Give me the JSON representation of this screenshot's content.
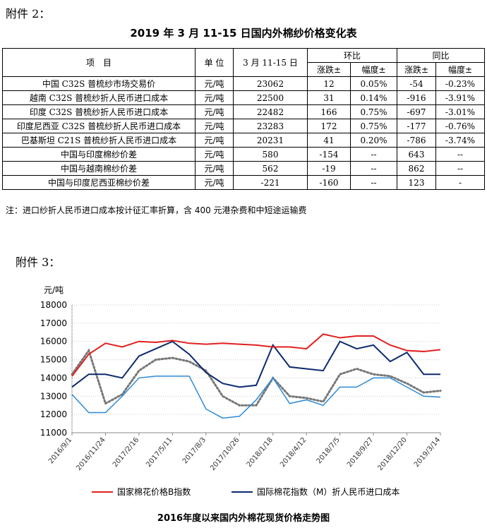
{
  "attachment2": "附件 2：",
  "table_title": "2019 年 3 月 11-15 日国内外棉纱价格变化表",
  "table": {
    "headers": {
      "item": "项　目",
      "unit": "单 位",
      "period": "3 月 11-15 日",
      "mom": "环比",
      "yoy": "同比",
      "change": "涨跌±",
      "pct": "幅度±"
    },
    "rows": [
      [
        "中国 C32S 普梳纱市场交易价",
        "元/吨",
        "23062",
        "12",
        "0.05%",
        "-54",
        "-0.23%"
      ],
      [
        "越南 C32S 普梳纱折人民币进口成本",
        "元/吨",
        "22500",
        "31",
        "0.14%",
        "-916",
        "-3.91%"
      ],
      [
        "印度 C32S 普梳纱折人民币进口成本",
        "元/吨",
        "22482",
        "166",
        "0.75%",
        "-697",
        "-3.01%"
      ],
      [
        "印度尼西亚 C32S 普梳纱折人民币进口成本",
        "元/吨",
        "23283",
        "172",
        "0.75%",
        "-177",
        "-0.76%"
      ],
      [
        "巴基斯坦 C21S 普梳纱折人民币进口成本",
        "元/吨",
        "20231",
        "41",
        "0.20%",
        "-786",
        "-3.74%"
      ],
      [
        "中国与印度棉纱价差",
        "元/吨",
        "580",
        "-154",
        "--",
        "643",
        "--"
      ],
      [
        "中国与越南棉纱价差",
        "元/吨",
        "562",
        "-19",
        "--",
        "862",
        "--"
      ],
      [
        "中国与印度尼西亚棉纱价差",
        "元/吨",
        "-221",
        "-160",
        "--",
        "123",
        "-"
      ]
    ]
  },
  "note": "注：进口纱折人民币进口成本按计征汇率折算，含 400 元港杂费和中短途运输费",
  "attachment3": "附件 3：",
  "chart_data": {
    "type": "line",
    "title": "2016年度以来国内外棉花现货价格走势图",
    "ylabel": "元/吨",
    "ylim": [
      11000,
      18000
    ],
    "yticks": [
      "18000",
      "17000",
      "16000",
      "15000",
      "14000",
      "13000",
      "12000",
      "11000"
    ],
    "xticks": [
      "2016/9/1",
      "2016/11/24",
      "2017/2/16",
      "2017/5/11",
      "2017/8/3",
      "2017/10/26",
      "2018/1/18",
      "2018/4/12",
      "2018/7/5",
      "2018/9/27",
      "2018/12/20",
      "2019/3/14"
    ],
    "grid": true,
    "legend_position": "bottom",
    "series": [
      {
        "name": "国家棉花价格B指数",
        "color": "#e02020",
        "style": "solid",
        "values": [
          14100,
          15300,
          15900,
          15700,
          16000,
          15950,
          16050,
          15900,
          15850,
          15900,
          15850,
          15800,
          15700,
          15700,
          15600,
          16400,
          16200,
          16300,
          16300,
          15800,
          15500,
          15450,
          15550
        ]
      },
      {
        "name": "国际棉花指数（M）折人民币进口成本",
        "color": "#0c2a6e",
        "style": "solid",
        "values": [
          13500,
          14200,
          14200,
          14000,
          15200,
          15600,
          16000,
          15300,
          14300,
          13700,
          13500,
          13600,
          15800,
          14600,
          14500,
          14400,
          16000,
          15600,
          15800,
          14900,
          15400,
          14200,
          14200
        ]
      },
      {
        "name": "",
        "color": "#2b8ad6",
        "style": "solid",
        "values": [
          13100,
          12100,
          12100,
          13000,
          14000,
          14100,
          14100,
          14100,
          12300,
          11800,
          11900,
          12800,
          14000,
          12600,
          12800,
          12500,
          13500,
          13500,
          14000,
          14000,
          13500,
          13000,
          12950
        ]
      },
      {
        "name": "",
        "color": "#777777",
        "style": "dotted",
        "values": [
          14200,
          15500,
          12600,
          13100,
          14400,
          15000,
          15100,
          14900,
          14400,
          13000,
          12500,
          12500,
          14000,
          13000,
          12900,
          12700,
          14200,
          14500,
          14200,
          14100,
          13700,
          13200,
          13300
        ]
      }
    ]
  }
}
